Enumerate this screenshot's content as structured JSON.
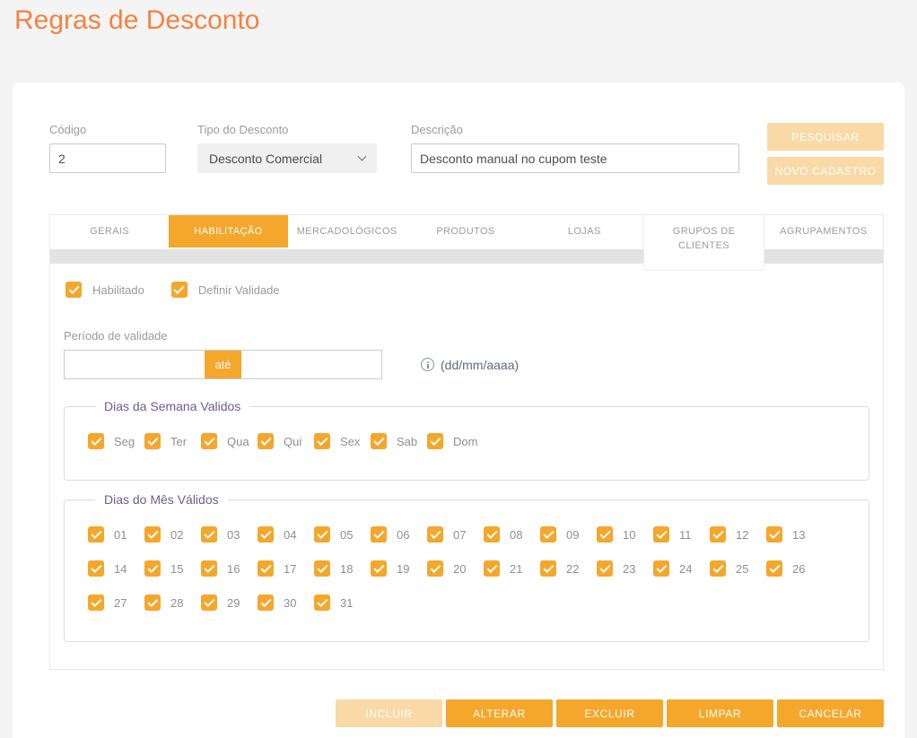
{
  "page": {
    "title": "Regras de Desconto"
  },
  "colors": {
    "accent_orange": "#F5A72B",
    "title_orange": "#F5823F",
    "disabled_orange": "#F9D9A6",
    "legend_purple": "#6D5C92",
    "tab_strip_gray": "#E3E3E3"
  },
  "search": {
    "codigo_label": "Código",
    "codigo_value": "2",
    "tipo_label": "Tipo do Desconto",
    "tipo_value": "Desconto Comercial",
    "descricao_label": "Descrição",
    "descricao_value": "Desconto manual no cupom teste",
    "pesquisar_label": "PESQUISAR",
    "novo_cadastro_label": "NOVO CADASTRO"
  },
  "tabs": [
    {
      "label": "GERAIS"
    },
    {
      "label": "HABILITAÇÃO",
      "active": true
    },
    {
      "label": "MERCADOLÓGICOS"
    },
    {
      "label": "PRODUTOS"
    },
    {
      "label": "LOJAS"
    },
    {
      "label": "GRUPOS DE CLIENTES",
      "tall": true
    },
    {
      "label": "AGRUPAMENTOS"
    }
  ],
  "habilitacao": {
    "habilitado_label": "Habilitado",
    "habilitado_checked": true,
    "definir_validade_label": "Definir Validade",
    "definir_validade_checked": true,
    "periodo_label": "Período de validade",
    "date_from_value": "",
    "ate_label": "até",
    "date_to_value": "",
    "date_format_hint": "(dd/mm/aaaa)",
    "semana_legend": "Dias da Semana Validos",
    "semana_all_checked": true,
    "semana_dias": [
      "Seg",
      "Ter",
      "Qua",
      "Qui",
      "Sex",
      "Sab",
      "Dom"
    ],
    "mes_legend": "Dias do Mês Válidos",
    "mes_all_checked": true,
    "mes_dias": [
      "01",
      "02",
      "03",
      "04",
      "05",
      "06",
      "07",
      "08",
      "09",
      "10",
      "11",
      "12",
      "13",
      "14",
      "15",
      "16",
      "17",
      "18",
      "19",
      "20",
      "21",
      "22",
      "23",
      "24",
      "25",
      "26",
      "27",
      "28",
      "29",
      "30",
      "31"
    ]
  },
  "actions": [
    {
      "label": "INCLUIR",
      "disabled": true
    },
    {
      "label": "ALTERAR"
    },
    {
      "label": "EXCLUIR"
    },
    {
      "label": "LIMPAR"
    },
    {
      "label": "CANCELAR"
    }
  ]
}
